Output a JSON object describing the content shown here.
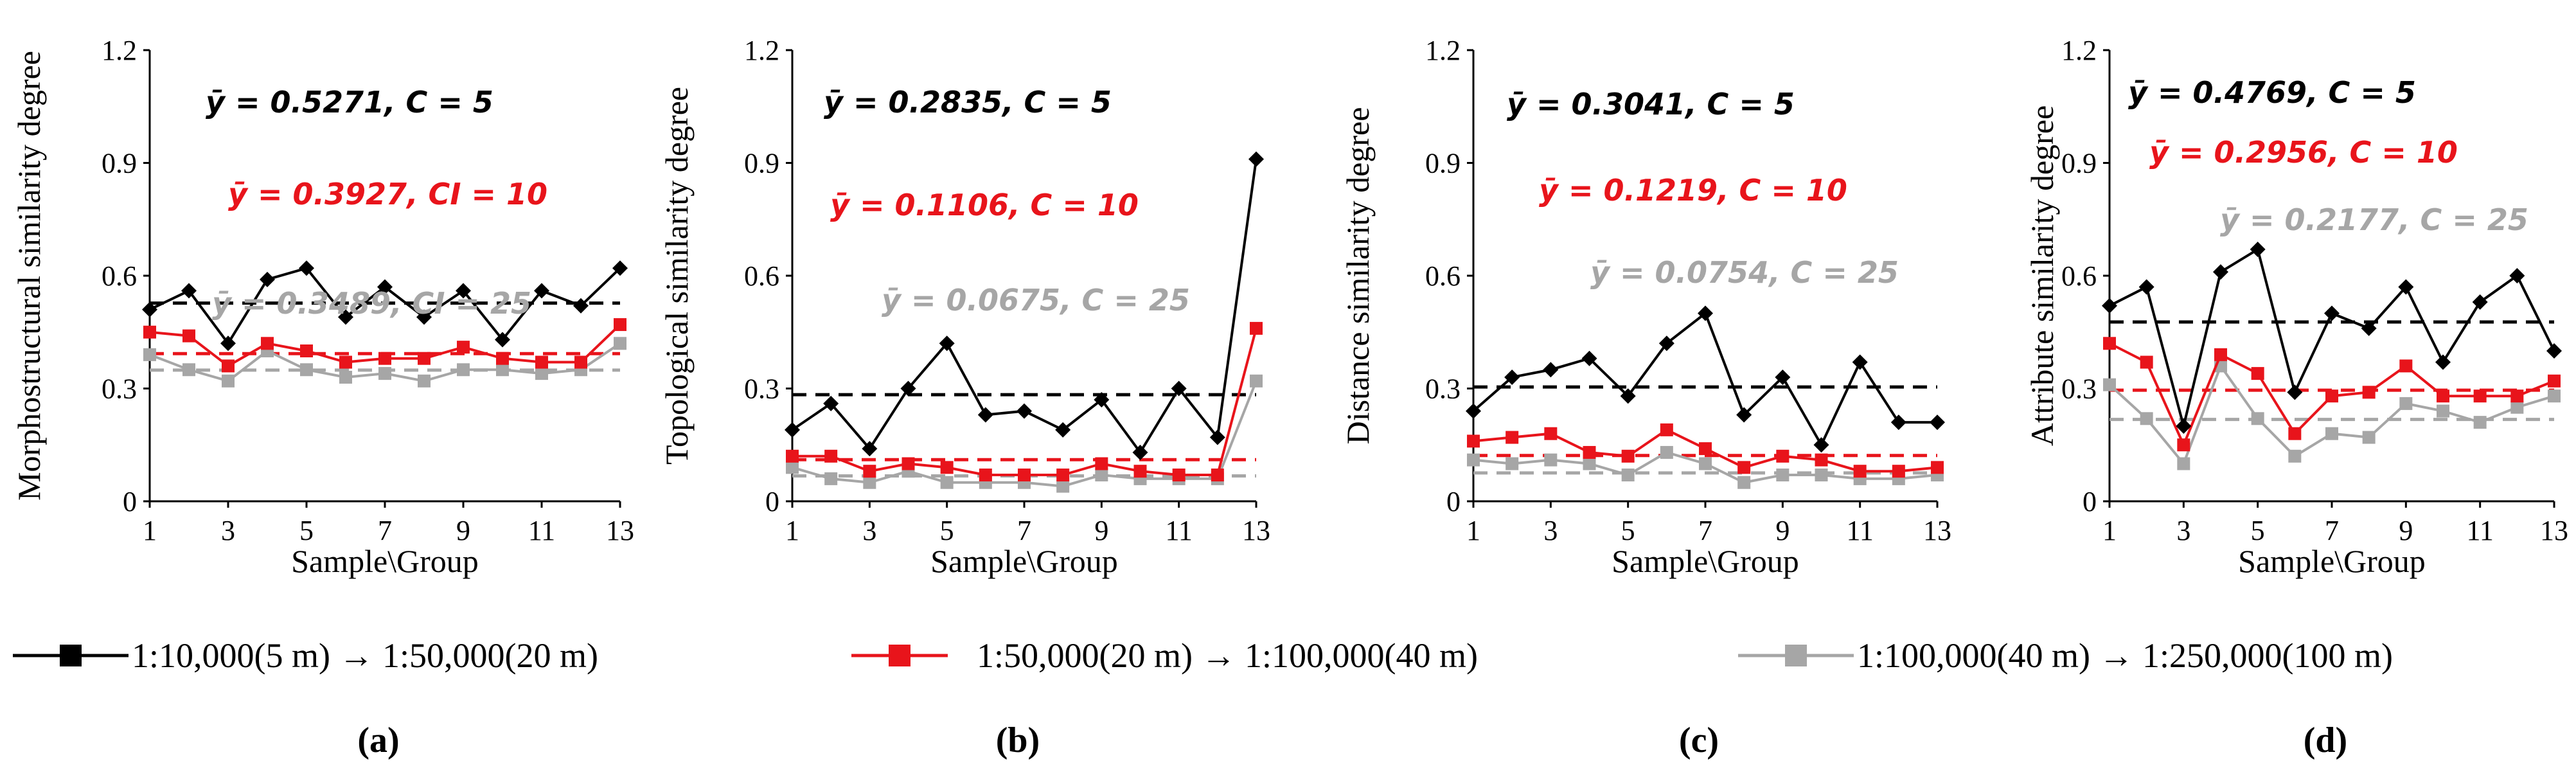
{
  "figure_name": "similarity-degree-panels",
  "colors": {
    "series1": "#000000",
    "series2": "#e8141b",
    "series3": "#a6a6a6"
  },
  "legend": [
    {
      "label": "1:10,000(5 m) → 1:50,000(20 m)",
      "color": "#000000"
    },
    {
      "label": "1:50,000(20 m) → 1:100,000(40 m)",
      "color": "#e8141b"
    },
    {
      "label": "1:100,000(40 m) → 1:250,000(100 m)",
      "color": "#a6a6a6"
    }
  ],
  "chart_data": [
    {
      "type": "line",
      "panel_label": "(a)",
      "xlabel": "Sample\\Group",
      "ylabel": "Morphostructural similarity degree",
      "ylim": [
        0,
        1.2
      ],
      "yticks": [
        "0",
        "0.3",
        "0.6",
        "0.9",
        "1.2"
      ],
      "xticks": [
        "1",
        "3",
        "5",
        "7",
        "9",
        "11",
        "13"
      ],
      "x": [
        1,
        2,
        3,
        4,
        5,
        6,
        7,
        8,
        9,
        10,
        11,
        12,
        13
      ],
      "series": [
        {
          "name": "1:10,000(5 m) → 1:50,000(20 m)",
          "values": [
            0.51,
            0.56,
            0.42,
            0.59,
            0.62,
            0.49,
            0.57,
            0.49,
            0.56,
            0.43,
            0.56,
            0.52,
            0.62
          ],
          "mean": 0.5271
        },
        {
          "name": "1:50,000(20 m) → 1:100,000(40 m)",
          "values": [
            0.45,
            0.44,
            0.36,
            0.42,
            0.4,
            0.37,
            0.38,
            0.38,
            0.41,
            0.38,
            0.37,
            0.37,
            0.47
          ],
          "mean": 0.3927
        },
        {
          "name": "1:100,000(40 m) → 1:250,000(100 m)",
          "values": [
            0.39,
            0.35,
            0.32,
            0.4,
            0.35,
            0.33,
            0.34,
            0.32,
            0.35,
            0.35,
            0.34,
            0.35,
            0.42
          ],
          "mean": 0.3489
        }
      ],
      "annotations": [
        {
          "text": "ȳ = 0.5271,  C = 5",
          "color": "#000000"
        },
        {
          "text": "ȳ = 0.3927,  CI = 10",
          "color": "#e8141b"
        },
        {
          "text": "ȳ = 0.3489,  CI = 25",
          "color": "#a6a6a6"
        }
      ]
    },
    {
      "type": "line",
      "panel_label": "(b)",
      "xlabel": "Sample\\Group",
      "ylabel": "Topological similarity degree",
      "ylim": [
        0,
        1.2
      ],
      "yticks": [
        "0",
        "0.3",
        "0.6",
        "0.9",
        "1.2"
      ],
      "xticks": [
        "1",
        "3",
        "5",
        "7",
        "9",
        "11",
        "13"
      ],
      "x": [
        1,
        2,
        3,
        4,
        5,
        6,
        7,
        8,
        9,
        10,
        11,
        12,
        13
      ],
      "series": [
        {
          "name": "1:10,000(5 m) → 1:50,000(20 m)",
          "values": [
            0.19,
            0.26,
            0.14,
            0.3,
            0.42,
            0.23,
            0.24,
            0.19,
            0.27,
            0.13,
            0.3,
            0.17,
            0.91
          ],
          "mean": 0.2835
        },
        {
          "name": "1:50,000(20 m) → 1:100,000(40 m)",
          "values": [
            0.12,
            0.12,
            0.08,
            0.1,
            0.09,
            0.07,
            0.07,
            0.07,
            0.1,
            0.08,
            0.07,
            0.07,
            0.46
          ],
          "mean": 0.1106
        },
        {
          "name": "1:100,000(40 m) → 1:250,000(100 m)",
          "values": [
            0.09,
            0.06,
            0.05,
            0.08,
            0.05,
            0.05,
            0.05,
            0.04,
            0.07,
            0.06,
            0.06,
            0.06,
            0.32
          ],
          "mean": 0.0675
        }
      ],
      "annotations": [
        {
          "text": "ȳ = 0.2835,  C = 5",
          "color": "#000000"
        },
        {
          "text": "ȳ = 0.1106,  C = 10",
          "color": "#e8141b"
        },
        {
          "text": "ȳ = 0.0675,  C = 25",
          "color": "#a6a6a6"
        }
      ]
    },
    {
      "type": "line",
      "panel_label": "(c)",
      "xlabel": "Sample\\Group",
      "ylabel": "Distance similarity degree",
      "ylim": [
        0,
        1.2
      ],
      "yticks": [
        "0",
        "0.3",
        "0.6",
        "0.9",
        "1.2"
      ],
      "xticks": [
        "1",
        "3",
        "5",
        "7",
        "9",
        "11",
        "13"
      ],
      "x": [
        1,
        2,
        3,
        4,
        5,
        6,
        7,
        8,
        9,
        10,
        11,
        12,
        13
      ],
      "series": [
        {
          "name": "1:10,000(5 m) → 1:50,000(20 m)",
          "values": [
            0.24,
            0.33,
            0.35,
            0.38,
            0.28,
            0.42,
            0.5,
            0.23,
            0.33,
            0.15,
            0.37,
            0.21,
            0.21
          ],
          "mean": 0.3041
        },
        {
          "name": "1:50,000(20 m) → 1:100,000(40 m)",
          "values": [
            0.16,
            0.17,
            0.18,
            0.13,
            0.12,
            0.19,
            0.14,
            0.09,
            0.12,
            0.11,
            0.08,
            0.08,
            0.09
          ],
          "mean": 0.1219
        },
        {
          "name": "1:100,000(40 m) → 1:250,000(100 m)",
          "values": [
            0.11,
            0.1,
            0.11,
            0.1,
            0.07,
            0.13,
            0.1,
            0.05,
            0.07,
            0.07,
            0.06,
            0.06,
            0.07
          ],
          "mean": 0.0754
        }
      ],
      "annotations": [
        {
          "text": "ȳ = 0.3041,  C = 5",
          "color": "#000000"
        },
        {
          "text": "ȳ = 0.1219,  C = 10",
          "color": "#e8141b"
        },
        {
          "text": "ȳ = 0.0754,  C = 25",
          "color": "#a6a6a6"
        }
      ]
    },
    {
      "type": "line",
      "panel_label": "(d)",
      "xlabel": "Sample\\Group",
      "ylabel": "Attribute similarity degree",
      "ylim": [
        0,
        1.2
      ],
      "yticks": [
        "0",
        "0.3",
        "0.6",
        "0.9",
        "1.2"
      ],
      "xticks": [
        "1",
        "3",
        "5",
        "7",
        "9",
        "11",
        "13"
      ],
      "x": [
        1,
        2,
        3,
        4,
        5,
        6,
        7,
        8,
        9,
        10,
        11,
        12,
        13
      ],
      "series": [
        {
          "name": "1:10,000(5 m) → 1:50,000(20 m)",
          "values": [
            0.52,
            0.57,
            0.2,
            0.61,
            0.67,
            0.29,
            0.5,
            0.46,
            0.57,
            0.37,
            0.53,
            0.6,
            0.4
          ],
          "mean": 0.4769
        },
        {
          "name": "1:50,000(20 m) → 1:100,000(40 m)",
          "values": [
            0.42,
            0.37,
            0.15,
            0.39,
            0.34,
            0.18,
            0.28,
            0.29,
            0.36,
            0.28,
            0.28,
            0.28,
            0.32
          ],
          "mean": 0.2956
        },
        {
          "name": "1:100,000(40 m) → 1:250,000(100 m)",
          "values": [
            0.31,
            0.22,
            0.1,
            0.36,
            0.22,
            0.12,
            0.18,
            0.17,
            0.26,
            0.24,
            0.21,
            0.25,
            0.28
          ],
          "mean": 0.2177
        }
      ],
      "annotations": [
        {
          "text": "ȳ = 0.4769,  C = 5",
          "color": "#000000"
        },
        {
          "text": "ȳ = 0.2956,  C = 10",
          "color": "#e8141b"
        },
        {
          "text": "ȳ = 0.2177,  C = 25",
          "color": "#a6a6a6"
        }
      ]
    }
  ]
}
